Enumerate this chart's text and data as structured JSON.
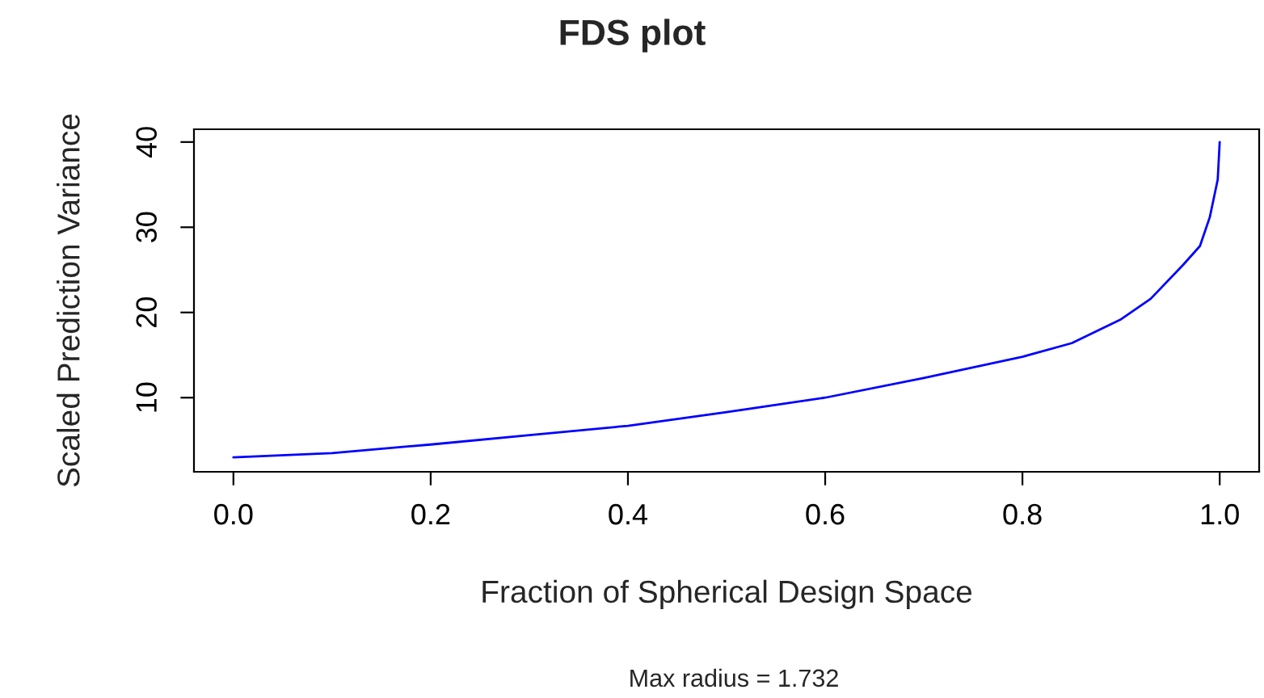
{
  "chart_data": {
    "type": "line",
    "title": "FDS plot",
    "xlabel": "Fraction of Spherical Design Space",
    "ylabel": "Scaled Prediction Variance",
    "annotations": [
      "Max radius = 1.732"
    ],
    "x": [
      0,
      0.1,
      0.2,
      0.3,
      0.4,
      0.5,
      0.6,
      0.7,
      0.8,
      0.85,
      0.9,
      0.93,
      0.963,
      0.98,
      0.99,
      0.998,
      1.0
    ],
    "series": [
      {
        "color": "#0000ff",
        "values": [
          3.0,
          3.5,
          4.5,
          5.6,
          6.7,
          8.3,
          10.0,
          12.3,
          14.8,
          16.4,
          19.2,
          21.6,
          25.6,
          27.8,
          31.2,
          35.6,
          40.0
        ]
      }
    ],
    "xlim": [
      -0.04,
      1.04
    ],
    "ylim": [
      1.3,
      41.5
    ],
    "xticks": [
      {
        "value": 0,
        "label": "0.0"
      },
      0.2,
      0.4,
      0.6,
      0.8,
      {
        "value": 1,
        "label": "1.0"
      }
    ],
    "yticks": [
      10,
      20,
      30,
      40
    ],
    "grid": false,
    "legend": false,
    "marker": "none",
    "line_style": "solid"
  }
}
